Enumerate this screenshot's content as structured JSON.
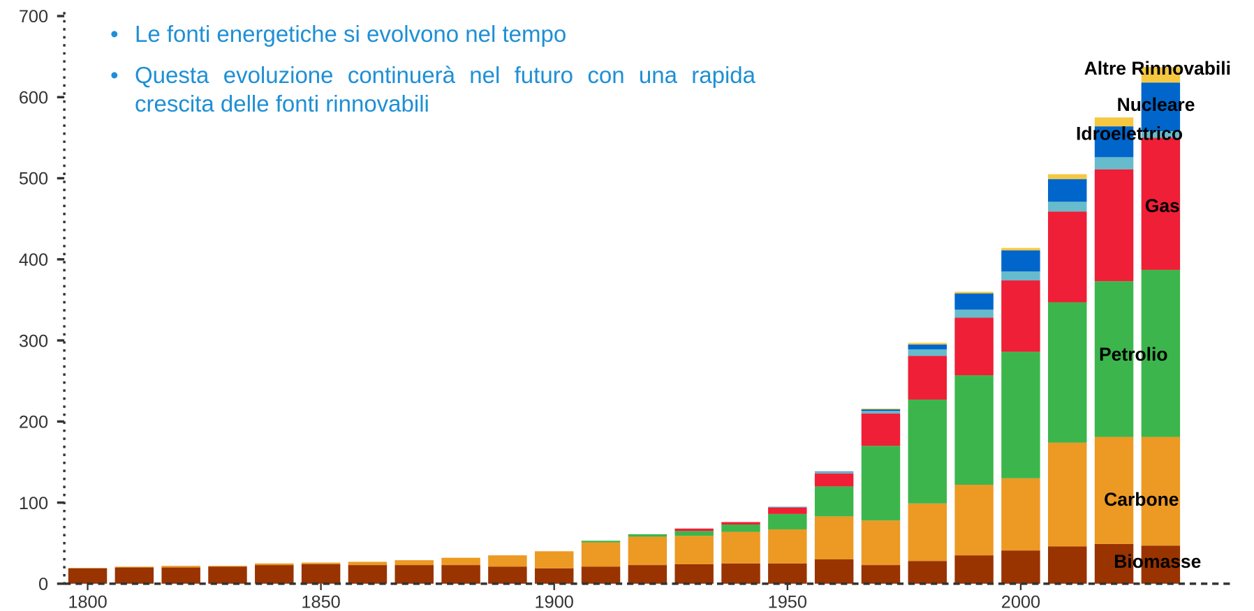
{
  "chart_data": {
    "type": "bar",
    "stacked": true,
    "x": [
      1800,
      1810,
      1820,
      1830,
      1840,
      1850,
      1860,
      1870,
      1880,
      1890,
      1900,
      1910,
      1920,
      1930,
      1940,
      1950,
      1960,
      1970,
      1980,
      1990,
      2000,
      2010,
      2020,
      2030
    ],
    "xlim": [
      1795,
      2050
    ],
    "xticks": [
      1800,
      1850,
      1900,
      1950,
      2000
    ],
    "ylim": [
      0,
      700
    ],
    "yticks": [
      0,
      100,
      200,
      300,
      400,
      500,
      600,
      700
    ],
    "annotations": [
      "Le fonti energetiche si evolvono nel tempo",
      "Questa evoluzione continuerà nel futuro con una rapida crescita delle fonti rinnovabili"
    ],
    "series": [
      {
        "name": "Biomasse",
        "color": "#993300",
        "values": [
          19,
          20,
          20,
          21,
          23,
          24,
          23,
          23,
          23,
          21,
          19,
          21,
          23,
          24,
          25,
          25,
          30,
          23,
          28,
          35,
          41,
          46,
          49,
          47
        ]
      },
      {
        "name": "Carbone",
        "color": "#ec9a24",
        "values": [
          0.5,
          1,
          2,
          1,
          2,
          2,
          4,
          6,
          9,
          14,
          21,
          30,
          35,
          35,
          39,
          42,
          53,
          55,
          71,
          87,
          89,
          128,
          132,
          134
        ]
      },
      {
        "name": "Petrolio",
        "color": "#3cb64c",
        "values": [
          0,
          0,
          0,
          0,
          0,
          0,
          0,
          0,
          0,
          0,
          0,
          2,
          3,
          6,
          9,
          19,
          37,
          92,
          128,
          135,
          156,
          173,
          192,
          206
        ]
      },
      {
        "name": "Gas",
        "color": "#ee1f36",
        "values": [
          0,
          0,
          0,
          0,
          0,
          0,
          0,
          0,
          0,
          0,
          0,
          0,
          0,
          3,
          3,
          8,
          16,
          40,
          54,
          71,
          88,
          112,
          138,
          163
        ]
      },
      {
        "name": "Idroelettrico",
        "color": "#66bbcc",
        "values": [
          0,
          0,
          0,
          0,
          0,
          0,
          0,
          0,
          0,
          0,
          0,
          0,
          0,
          0,
          0,
          1,
          2,
          3,
          8,
          10,
          11,
          12,
          15,
          8
        ]
      },
      {
        "name": "Nucleare",
        "color": "#0066cc",
        "values": [
          0,
          0,
          0,
          0,
          0,
          0,
          0,
          0,
          0,
          0,
          0,
          0,
          0,
          0,
          0,
          0,
          0.5,
          2,
          6,
          20,
          26,
          28,
          38,
          60
        ]
      },
      {
        "name": "Altre Rinnovabili",
        "color": "#f5c842",
        "values": [
          0,
          0,
          0,
          0,
          0,
          0,
          0,
          0,
          0,
          0,
          0,
          0,
          0,
          0,
          0,
          0,
          0,
          1,
          2,
          2,
          3,
          6,
          11,
          19
        ]
      }
    ]
  }
}
